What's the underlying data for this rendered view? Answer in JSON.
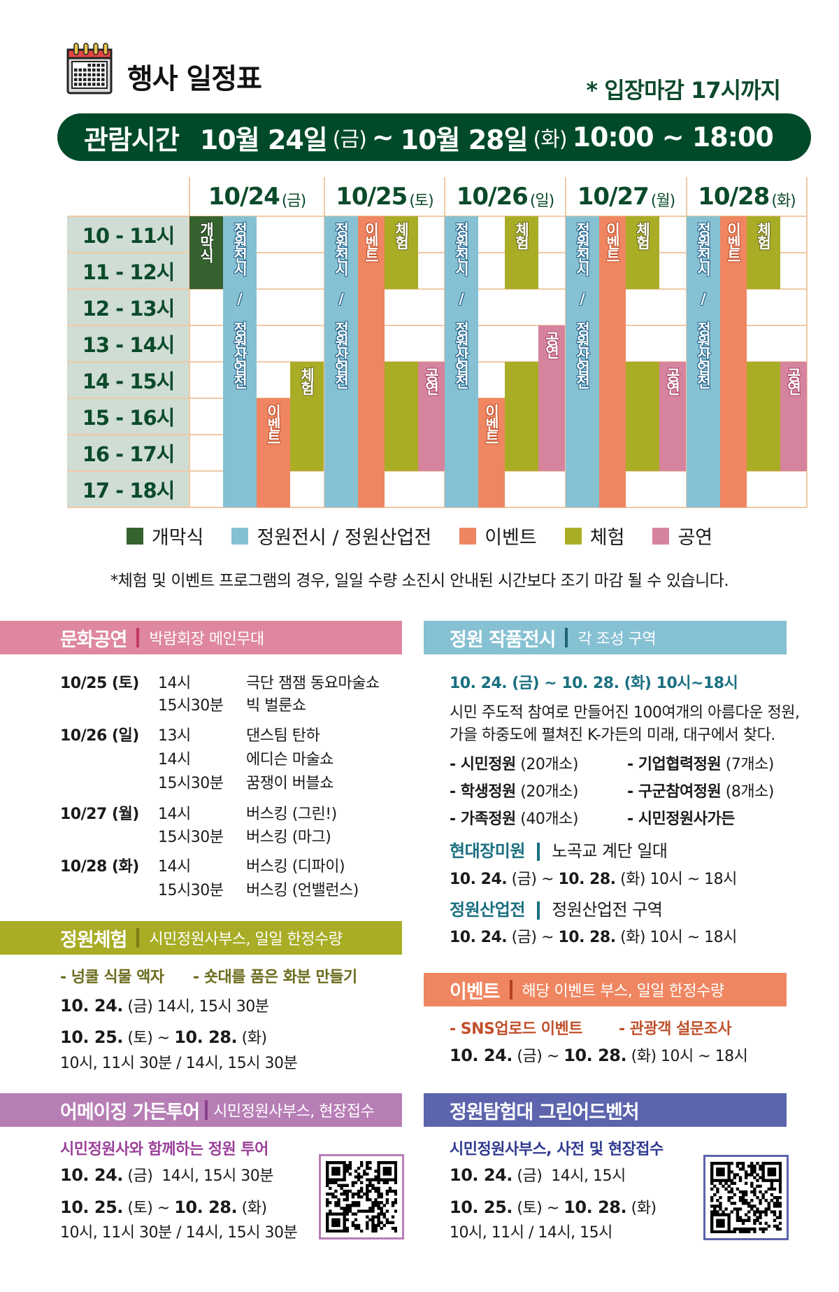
{
  "header": {
    "title": "행사 일정표",
    "icon": "calendar-icon",
    "entry_note": "* 입장마감 17시까지",
    "banner": {
      "label": "관람시간",
      "start": "10월 24일",
      "start_dow": "(금)",
      "tilde": "~",
      "end": "10월 28일",
      "end_dow": "(화)",
      "hours": "10:00 ~ 18:00"
    }
  },
  "colors": {
    "brand_green": "#004a2a",
    "opening": "#36622f",
    "garden": "#86c0d3",
    "event": "#ef8661",
    "experience": "#a9ad26",
    "performance": "#d6839d",
    "tour": "#b77eb6",
    "adventure": "#5c64ad"
  },
  "schedule": {
    "time_slots": [
      "10 - 11시",
      "11 - 12시",
      "12 - 13시",
      "13 - 14시",
      "14 - 15시",
      "15 - 16시",
      "16 - 17시",
      "17 - 18시"
    ],
    "categories": {
      "opening": "개막식",
      "garden": "정원전시 / 정원산업전",
      "event": "이벤트",
      "experience": "체험",
      "performance": "공연"
    },
    "days": [
      {
        "date": "10/24",
        "dow": "(금)",
        "lanes": [
          [
            {
              "cat": "opening",
              "start": 10,
              "end": 12,
              "label": true
            }
          ],
          [
            {
              "cat": "garden",
              "start": 10,
              "end": 18,
              "label": true
            }
          ],
          [
            {
              "cat": "event",
              "start": 15,
              "end": 18,
              "label": true
            }
          ],
          [
            {
              "cat": "experience",
              "start": 14,
              "end": 17,
              "label": true
            }
          ]
        ]
      },
      {
        "date": "10/25",
        "dow": "(토)",
        "lanes": [
          [
            {
              "cat": "garden",
              "start": 10,
              "end": 18,
              "label": true
            }
          ],
          [
            {
              "cat": "event",
              "start": 10,
              "end": 18,
              "label": true
            }
          ],
          [
            {
              "cat": "experience",
              "start": 10,
              "end": 12,
              "label": true
            },
            {
              "cat": "experience",
              "start": 14,
              "end": 17,
              "label": false
            }
          ],
          [
            {
              "cat": "performance",
              "start": 14,
              "end": 17,
              "label": true
            }
          ]
        ]
      },
      {
        "date": "10/26",
        "dow": "(일)",
        "lanes": [
          [
            {
              "cat": "garden",
              "start": 10,
              "end": 18,
              "label": true
            }
          ],
          [
            {
              "cat": "event",
              "start": 15,
              "end": 18,
              "label": true
            }
          ],
          [
            {
              "cat": "experience",
              "start": 10,
              "end": 12,
              "label": true
            },
            {
              "cat": "experience",
              "start": 14,
              "end": 17,
              "label": false
            }
          ],
          [
            {
              "cat": "performance",
              "start": 13,
              "end": 17,
              "label": true
            }
          ]
        ]
      },
      {
        "date": "10/27",
        "dow": "(월)",
        "lanes": [
          [
            {
              "cat": "garden",
              "start": 10,
              "end": 18,
              "label": true
            }
          ],
          [
            {
              "cat": "event",
              "start": 10,
              "end": 18,
              "label": true
            }
          ],
          [
            {
              "cat": "experience",
              "start": 10,
              "end": 12,
              "label": true
            },
            {
              "cat": "experience",
              "start": 14,
              "end": 17,
              "label": false
            }
          ],
          [
            {
              "cat": "performance",
              "start": 14,
              "end": 17,
              "label": true
            }
          ]
        ]
      },
      {
        "date": "10/28",
        "dow": "(화)",
        "lanes": [
          [
            {
              "cat": "garden",
              "start": 10,
              "end": 18,
              "label": true
            }
          ],
          [
            {
              "cat": "event",
              "start": 10,
              "end": 18,
              "label": true
            }
          ],
          [
            {
              "cat": "experience",
              "start": 10,
              "end": 12,
              "label": true
            },
            {
              "cat": "experience",
              "start": 14,
              "end": 17,
              "label": false
            }
          ],
          [
            {
              "cat": "performance",
              "start": 14,
              "end": 17,
              "label": true
            }
          ]
        ]
      }
    ],
    "legend": [
      {
        "cat": "opening",
        "label": "개막식"
      },
      {
        "cat": "garden",
        "label": "정원전시 / 정원산업전"
      },
      {
        "cat": "event",
        "label": "이벤트"
      },
      {
        "cat": "experience",
        "label": "체험"
      },
      {
        "cat": "performance",
        "label": "공연"
      }
    ],
    "notice": "*체험 및 이벤트 프로그램의 경우, 일일 수량 소진시 안내된 시간보다 조기 마감 될 수 있습니다."
  },
  "performances": {
    "title": "문화공연",
    "subtitle": "박람회장 메인무대",
    "rows": [
      {
        "date": "10/25 (토)",
        "time": "14시",
        "name": "극단 잼잼 동요마술쇼"
      },
      {
        "date": "",
        "time": "15시30분",
        "name": "빅 벌룬쇼"
      },
      {
        "date": "10/26 (일)",
        "time": "13시",
        "name": "댄스팀 탄하"
      },
      {
        "date": "",
        "time": "14시",
        "name": "에디슨 마술쇼"
      },
      {
        "date": "",
        "time": "15시30분",
        "name": "꿈쟁이 버블쇼"
      },
      {
        "date": "10/27 (월)",
        "time": "14시",
        "name": "버스킹 (그린!)"
      },
      {
        "date": "",
        "time": "15시30분",
        "name": "버스킹 (마그)"
      },
      {
        "date": "10/28 (화)",
        "time": "14시",
        "name": "버스킹 (디파이)"
      },
      {
        "date": "",
        "time": "15시30분",
        "name": "버스킹 (언밸런스)"
      }
    ]
  },
  "experience": {
    "title": "정원체험",
    "subtitle": "시민정원사부스, 일일 한정수량",
    "items": [
      "- 넝쿨 식물 액자",
      "- 숏대를 품은 화분 만들기"
    ],
    "d1_date": "10. 24.",
    "d1_dow": "(금)",
    "d1_times": "14시, 15시 30분",
    "d2_start": "10. 25.",
    "d2_start_dow": "(토)",
    "d2_tilde": "~",
    "d2_end": "10. 28.",
    "d2_end_dow": "(화)",
    "d2_times": "10시, 11시 30분 / 14시, 15시 30분"
  },
  "tour": {
    "title": "어메이징 가든투어",
    "subtitle": "시민정원사부스, 현장접수",
    "desc": "시민정원사와 함께하는 정원 투어",
    "d1_date": "10. 24.",
    "d1_dow": "(금)",
    "d1_times": "14시, 15시 30분",
    "d2_start": "10. 25.",
    "d2_start_dow": "(토)",
    "d2_tilde": "~",
    "d2_end": "10. 28.",
    "d2_end_dow": "(화)",
    "d2_times": "10시, 11시 30분 / 14시, 15시 30분",
    "qr": "qr-code"
  },
  "exhibition": {
    "title": "정원 작품전시",
    "subtitle": "각 조성 구역",
    "period": "10. 24. (금) ~ 10. 28. (화) 10시~18시",
    "desc1": "시민 주도적 참여로 만들어진 100여개의 아름다운 정원,",
    "desc2": "가을 하중도에 펼쳐진 K-가든의 미래, 대구에서 찾다.",
    "items": [
      {
        "name": "- 시민정원",
        "count": "(20개소)"
      },
      {
        "name": "- 기업협력정원",
        "count": "(7개소)"
      },
      {
        "name": "- 학생정원",
        "count": "(20개소)"
      },
      {
        "name": "- 구군참여정원",
        "count": "(8개소)"
      },
      {
        "name": "- 가족정원",
        "count": "(40개소)"
      },
      {
        "name": "- 시민정원사가든",
        "count": ""
      }
    ],
    "rose": {
      "title": "현대장미원",
      "place": "노곡교 계단 일대",
      "start": "10. 24.",
      "start_dow": "(금)",
      "tilde": "~",
      "end": "10. 28.",
      "end_dow": "(화)",
      "hours": "10시 ~ 18시"
    },
    "industry": {
      "title": "정원산업전",
      "place": "정원산업전 구역",
      "start": "10. 24.",
      "start_dow": "(금)",
      "tilde": "~",
      "end": "10. 28.",
      "end_dow": "(화)",
      "hours": "10시 ~ 18시"
    }
  },
  "events": {
    "title": "이벤트",
    "subtitle": "해당 이벤트 부스, 일일 한정수량",
    "items": [
      "- SNS업로드 이벤트",
      "- 관광객 설문조사"
    ],
    "start": "10. 24.",
    "start_dow": "(금)",
    "tilde": "~",
    "end": "10. 28.",
    "end_dow": "(화)",
    "hours": "10시 ~ 18시"
  },
  "adventure": {
    "title": "정원탐험대 그린어드벤처",
    "desc": "시민정원사부스, 사전 및 현장접수",
    "d1_date": "10. 24.",
    "d1_dow": "(금)",
    "d1_times": "14시, 15시",
    "d2_start": "10. 25.",
    "d2_start_dow": "(토)",
    "d2_tilde": "~",
    "d2_end": "10. 28.",
    "d2_end_dow": "(화)",
    "d2_times": "10시, 11시 / 14시, 15시",
    "qr": "qr-code"
  }
}
